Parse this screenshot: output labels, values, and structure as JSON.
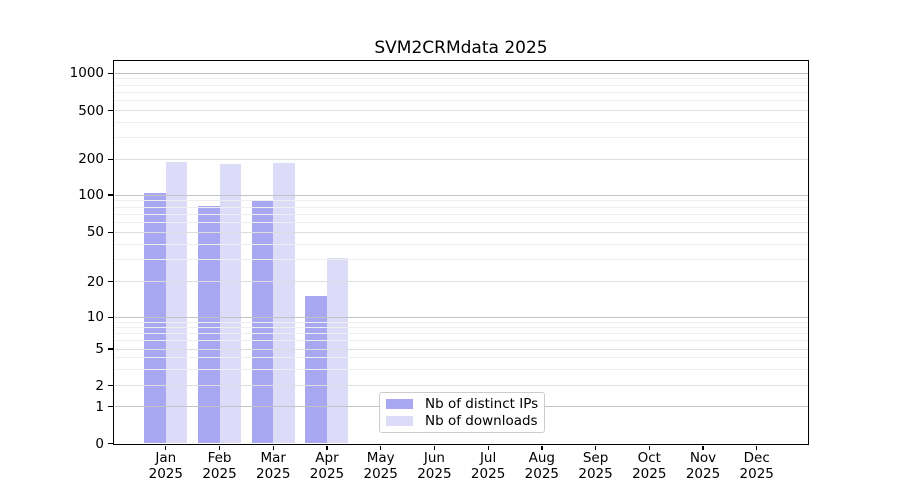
{
  "title": "SVM2CRMdata 2025",
  "legend": {
    "items": [
      {
        "label": "Nb of distinct IPs",
        "color": "#a8a8f2"
      },
      {
        "label": "Nb of downloads",
        "color": "#dcdcf8"
      }
    ]
  },
  "axes": {
    "y_ticks": [
      {
        "value": 0,
        "label": "0"
      },
      {
        "value": 1,
        "label": "1"
      },
      {
        "value": 2,
        "label": "2"
      },
      {
        "value": 5,
        "label": "5"
      },
      {
        "value": 10,
        "label": "10"
      },
      {
        "value": 20,
        "label": "20"
      },
      {
        "value": 50,
        "label": "50"
      },
      {
        "value": 100,
        "label": "100"
      },
      {
        "value": 200,
        "label": "200"
      },
      {
        "value": 500,
        "label": "500"
      },
      {
        "value": 1000,
        "label": "1000"
      }
    ],
    "x_months": [
      "Jan",
      "Feb",
      "Mar",
      "Apr",
      "May",
      "Jun",
      "Jul",
      "Aug",
      "Sep",
      "Oct",
      "Nov",
      "Dec"
    ],
    "x_year": "2025"
  },
  "chart_data": {
    "type": "bar",
    "title": "SVM2CRMdata 2025",
    "categories": [
      "Jan 2025",
      "Feb 2025",
      "Mar 2025",
      "Apr 2025",
      "May 2025",
      "Jun 2025",
      "Jul 2025",
      "Aug 2025",
      "Sep 2025",
      "Oct 2025",
      "Nov 2025",
      "Dec 2025"
    ],
    "series": [
      {
        "name": "Nb of distinct IPs",
        "color": "#a8a8f2",
        "values": [
          103,
          82,
          90,
          15,
          0,
          0,
          0,
          0,
          0,
          0,
          0,
          0
        ]
      },
      {
        "name": "Nb of downloads",
        "color": "#dcdcf8",
        "values": [
          190,
          182,
          187,
          31,
          0,
          0,
          0,
          0,
          0,
          0,
          0,
          0
        ]
      }
    ],
    "yscale": "log-like with 0 baseline",
    "ytick_values": [
      0,
      1,
      2,
      5,
      10,
      20,
      50,
      100,
      200,
      500,
      1000
    ],
    "ylim": [
      0,
      1300
    ],
    "grid": "horizontal",
    "legend_position": "inside-bottom-left-of-center"
  }
}
